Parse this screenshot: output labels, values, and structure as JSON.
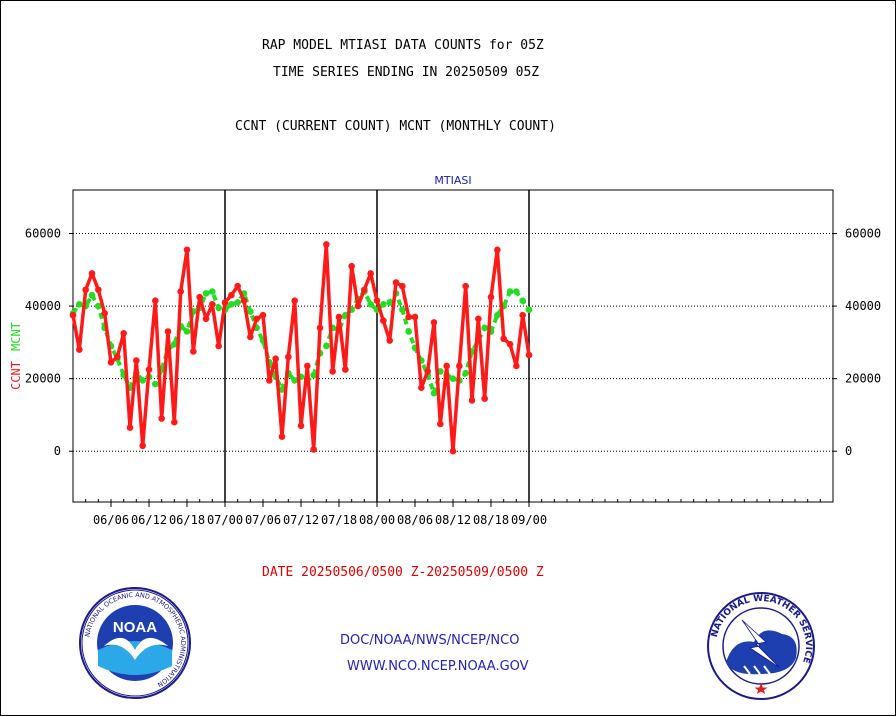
{
  "header": {
    "line1": "RAP MODEL MTIASI DATA COUNTS for 05Z",
    "line2": "TIME SERIES ENDING IN 20250509 05Z",
    "line3": "CCNT (CURRENT COUNT) MCNT (MONTHLY COUNT)"
  },
  "footer": {
    "date_range": "DATE 20250506/0500 Z-20250509/0500 Z",
    "link1": "DOC/NOAA/NWS/NCEP/NCO",
    "link2": "WWW.NCO.NCEP.NOAA.GOV"
  },
  "logos": {
    "noaa_text": "NOAA",
    "nws_text": "NATIONAL WEATHER SERVICE",
    "noaa_ring": "NATIONAL OCEANIC AND ATMOSPHERIC ADMINISTRATION"
  },
  "chart_data": {
    "type": "line",
    "title": "MTIASI",
    "ylabel_ccnt": "CCNT",
    "ylabel_mcnt": "MCNT",
    "ylim": [
      -14000,
      72000
    ],
    "y_ticks": [
      0,
      20000,
      40000,
      60000
    ],
    "y_tick_labels": [
      "0",
      "20000",
      "40000",
      "60000"
    ],
    "x_hours_range": [
      -42,
      78
    ],
    "x_ticks": [
      -36,
      -24,
      -12,
      0,
      12,
      24,
      36,
      48,
      60,
      72
    ],
    "x_tick_labels": [
      "06/06",
      "06/12",
      "06/18",
      "07/00",
      "07/06",
      "07/12",
      "07/18",
      "08/00",
      "08/06",
      "08/12",
      "08/18",
      "09/00"
    ],
    "x_tick_hours": [
      -36,
      -30,
      -24,
      -18,
      -12,
      -6,
      0,
      6,
      12,
      18,
      24,
      30
    ],
    "day_boundaries": [
      -18,
      6,
      30
    ],
    "grid": true,
    "colors": {
      "ccnt": "#ff1a1a",
      "mcnt": "#22dd22",
      "title": "#1a1aaa"
    },
    "series": [
      {
        "name": "CCNT",
        "start_hour": -42,
        "step_hours": 1,
        "values": [
          37500,
          28000,
          44500,
          49000,
          44500,
          38000,
          24500,
          26000,
          32500,
          6500,
          25000,
          1500,
          22500,
          41500,
          9000,
          33000,
          8000,
          44000,
          55500,
          27500,
          42500,
          36500,
          40500,
          29000,
          41000,
          43000,
          45500,
          41500,
          31500,
          36500,
          37500,
          19500,
          25500,
          4000,
          26000,
          41500,
          7000,
          23500,
          500,
          34000,
          57000,
          22000,
          37000,
          22500,
          51000,
          40000,
          44500,
          49000,
          41500,
          36000,
          30500,
          46500,
          45500,
          37000,
          37000,
          17500,
          22000,
          35500,
          7500,
          23500,
          0,
          23500,
          45500,
          14000,
          36500,
          14500,
          42500,
          55500,
          31000,
          29500,
          23500,
          37500,
          26500
        ]
      },
      {
        "name": "MCNT",
        "start_hour": -42,
        "step_hours": 1,
        "values": [
          38000,
          40500,
          40000,
          43000,
          40000,
          34000,
          29000,
          25500,
          21000,
          17500,
          21500,
          19500,
          20500,
          18500,
          22500,
          28000,
          29500,
          34500,
          33000,
          38500,
          39500,
          43500,
          44000,
          39500,
          39000,
          40500,
          41000,
          43500,
          38500,
          34000,
          30500,
          24500,
          20500,
          17000,
          21500,
          19500,
          20500,
          19500,
          21000,
          27000,
          29000,
          34000,
          33500,
          37500,
          39000,
          42000,
          44000,
          40500,
          39000,
          40500,
          41000,
          43500,
          39000,
          33000,
          28500,
          25000,
          21000,
          16000,
          22000,
          21000,
          20000,
          19500,
          21500,
          27500,
          30500,
          34000,
          33000,
          37500,
          40000,
          44000,
          44000,
          41500,
          39000
        ]
      }
    ]
  }
}
